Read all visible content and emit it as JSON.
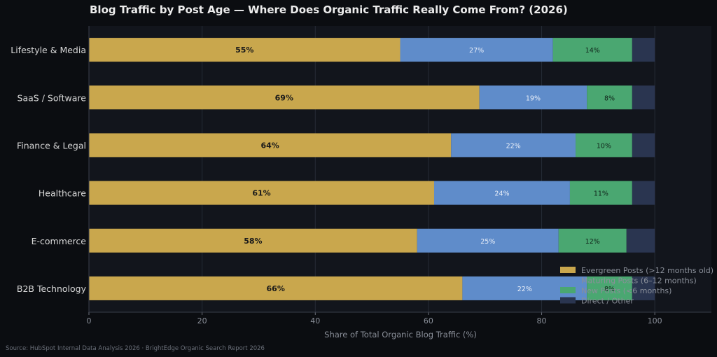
{
  "chart_data": {
    "type": "bar",
    "orientation": "horizontal",
    "stacked": true,
    "title": "Blog Traffic by Post Age — Where Does Organic Traffic Really Come From? (2026)",
    "xlabel": "Share of Total Organic Blog Traffic (%)",
    "ylabel": "",
    "xlim": [
      0,
      110
    ],
    "xticks": [
      0,
      20,
      40,
      60,
      80,
      100
    ],
    "grid": true,
    "legend_position": "bottom-right",
    "categories": [
      "Lifestyle & Media",
      "SaaS / Software",
      "Finance & Legal",
      "Healthcare",
      "E-commerce",
      "B2B Technology"
    ],
    "series": [
      {
        "name": "Evergreen Posts (>12 months old)",
        "color": "#c9a74d",
        "values": [
          55,
          69,
          64,
          61,
          58,
          66
        ]
      },
      {
        "name": "Maturing Posts (6–12 months)",
        "color": "#5f8cca",
        "values": [
          27,
          19,
          22,
          24,
          25,
          22
        ]
      },
      {
        "name": "New Posts (<6 months)",
        "color": "#4aa771",
        "values": [
          14,
          8,
          10,
          11,
          12,
          8
        ]
      },
      {
        "name": "Direct / Other",
        "color": "#2a3550",
        "values": [
          4,
          4,
          4,
          4,
          5,
          4
        ]
      }
    ],
    "data_labels": [
      [
        "55%",
        "27%",
        "14%",
        ""
      ],
      [
        "69%",
        "19%",
        "8%",
        ""
      ],
      [
        "64%",
        "22%",
        "10%",
        ""
      ],
      [
        "61%",
        "24%",
        "11%",
        ""
      ],
      [
        "58%",
        "25%",
        "12%",
        ""
      ],
      [
        "66%",
        "22%",
        "8%",
        ""
      ]
    ],
    "source": "Source: HubSpot Internal Data Analysis 2026 · BrightEdge Organic Search Report 2026"
  },
  "colors": {
    "background": "#0b0d11",
    "plot_background": "#12151c",
    "grid": "#262b36",
    "text": "#d8d8d8",
    "muted_text": "#8a8f99"
  }
}
